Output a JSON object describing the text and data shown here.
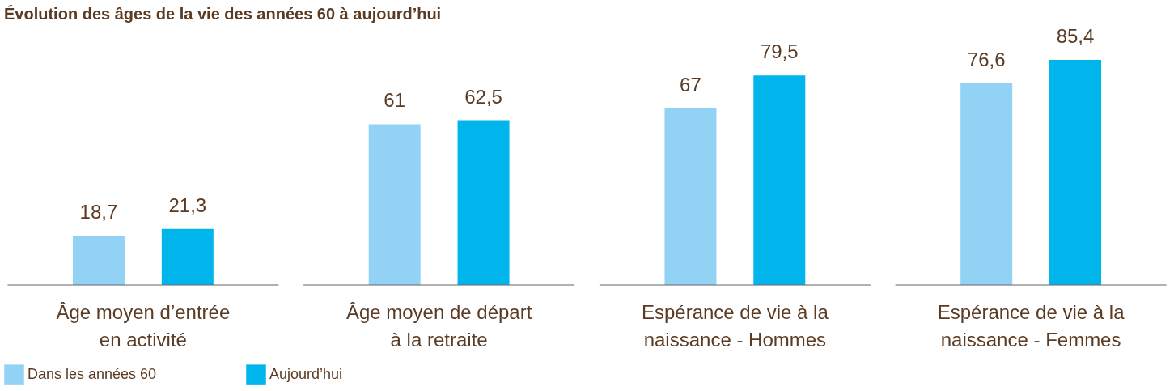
{
  "chart_data": {
    "type": "bar",
    "title": "Évolution des âges de la vie des années 60 à aujourd’hui",
    "categories": [
      "Âge moyen d’entrée\nen activité",
      "Âge moyen de départ\nà la retraite",
      "Espérance de vie à la\nnaissance - Hommes",
      "Espérance de vie à la\nnaissance - Femmes"
    ],
    "series": [
      {
        "name": "Dans les années 60",
        "color": "#92d3f5",
        "values": [
          18.7,
          61,
          67,
          76.6
        ],
        "value_labels": [
          "18,7",
          "61",
          "67",
          "76,6"
        ]
      },
      {
        "name": "Aujourd’hui",
        "color": "#00b5ec",
        "values": [
          21.3,
          62.5,
          79.5,
          85.4
        ],
        "value_labels": [
          "21,3",
          "62,5",
          "79,5",
          "85,4"
        ]
      }
    ],
    "legend": "bottom left",
    "grid": false
  }
}
